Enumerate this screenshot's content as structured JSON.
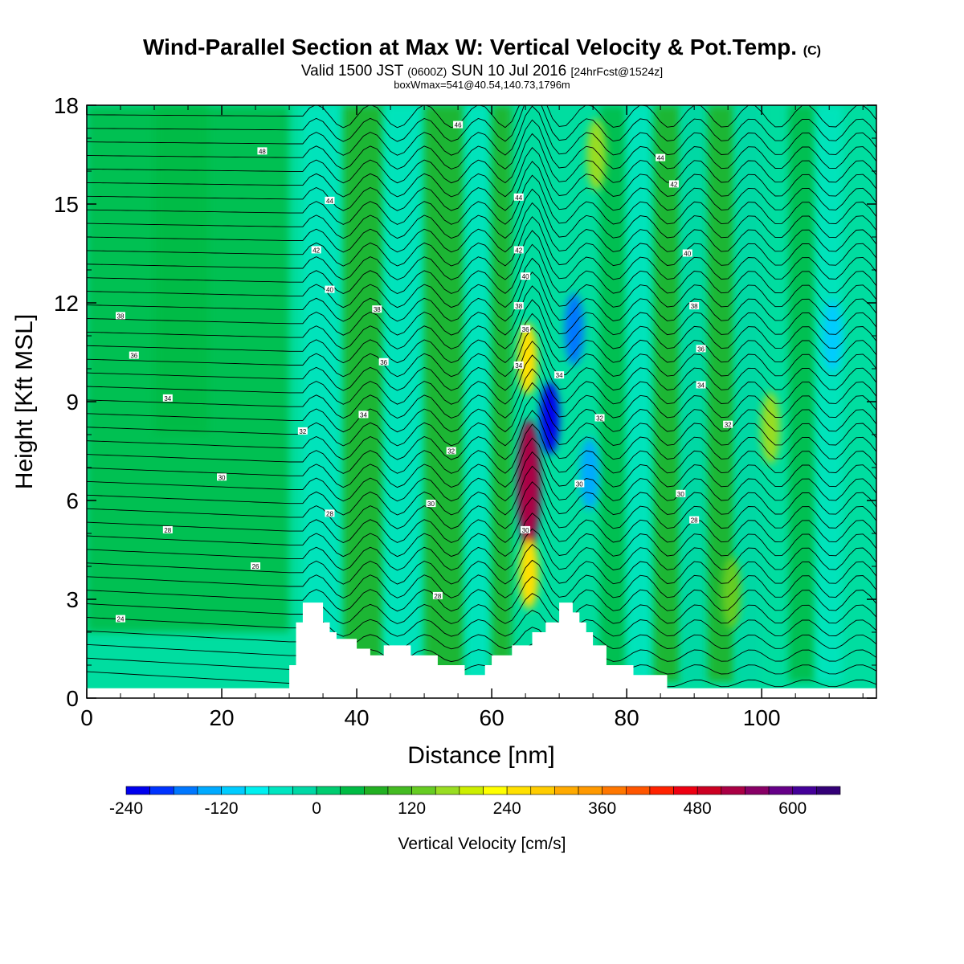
{
  "header": {
    "title": "Wind-Parallel Section at Max W: Vertical Velocity & Pot.Temp.",
    "copyright": "(C)",
    "valid_prefix": "Valid 1500 JST",
    "valid_utc": "(0600Z)",
    "valid_date": "SUN 10 Jul 2016",
    "forecast": "[24hrFcst@1524z]",
    "boxinfo": "boxWmax=541@40.54,140.73,1796m"
  },
  "chart_data": {
    "type": "heatmap",
    "xlabel": "Distance [nm]",
    "ylabel": "Height [Kft MSL]",
    "xlim": [
      0,
      117
    ],
    "ylim": [
      0,
      18
    ],
    "x_ticks": [
      "0",
      "20",
      "40",
      "60",
      "80",
      "100"
    ],
    "y_ticks": [
      "0",
      "3",
      "6",
      "9",
      "12",
      "15",
      "18"
    ],
    "colorbar": {
      "label": "Vertical Velocity [cm/s]",
      "tick_labels": [
        "-240",
        "-120",
        "0",
        "120",
        "240",
        "360",
        "480",
        "600"
      ],
      "levels": [
        -240,
        -210,
        -180,
        -150,
        -120,
        -90,
        -60,
        -30,
        0,
        30,
        60,
        90,
        120,
        150,
        180,
        210,
        240,
        270,
        300,
        330,
        360,
        390,
        420,
        450,
        480,
        510,
        540,
        570,
        600,
        630,
        660
      ],
      "colors": [
        "#0000ee",
        "#0033ff",
        "#0077ff",
        "#00aaff",
        "#00ccff",
        "#00f0f0",
        "#00e5c0",
        "#00d8a5",
        "#00cc70",
        "#00bb44",
        "#22b022",
        "#44bb22",
        "#66cc22",
        "#99dd22",
        "#ccee00",
        "#ffff00",
        "#ffe000",
        "#ffcc00",
        "#ffaa00",
        "#ff9900",
        "#ff7700",
        "#ff5500",
        "#ff2200",
        "#ee0011",
        "#cc0022",
        "#aa0044",
        "#880066",
        "#660088",
        "#440099",
        "#330077"
      ]
    },
    "wind_features": [
      {
        "x": 65.5,
        "y": 6.5,
        "w": 510,
        "note": "strong updraft core"
      },
      {
        "x": 65.5,
        "y": 3.8,
        "w": 260
      },
      {
        "x": 65.3,
        "y": 10.3,
        "w": 250
      },
      {
        "x": 68.6,
        "y": 8.5,
        "w": -240
      },
      {
        "x": 72.2,
        "y": 11.2,
        "w": -170
      },
      {
        "x": 74.5,
        "y": 6.8,
        "w": -130
      },
      {
        "x": 101.3,
        "y": 8.2,
        "w": 170
      },
      {
        "x": 75.5,
        "y": 16.5,
        "w": 170
      },
      {
        "x": 95.5,
        "y": 3.2,
        "w": 130
      },
      {
        "x": 110.5,
        "y": 11.0,
        "w": -120
      }
    ],
    "terrain": [
      {
        "x": 30,
        "y": 0.3
      },
      {
        "x": 30,
        "y": 1.0
      },
      {
        "x": 31,
        "y": 1.0
      },
      {
        "x": 31,
        "y": 2.3
      },
      {
        "x": 32,
        "y": 2.3
      },
      {
        "x": 32,
        "y": 2.9
      },
      {
        "x": 35,
        "y": 2.9
      },
      {
        "x": 35,
        "y": 2.3
      },
      {
        "x": 36,
        "y": 2.3
      },
      {
        "x": 36,
        "y": 2.0
      },
      {
        "x": 37,
        "y": 2.0
      },
      {
        "x": 37,
        "y": 1.8
      },
      {
        "x": 40,
        "y": 1.8
      },
      {
        "x": 40,
        "y": 1.5
      },
      {
        "x": 42,
        "y": 1.5
      },
      {
        "x": 42,
        "y": 1.3
      },
      {
        "x": 44,
        "y": 1.3
      },
      {
        "x": 44,
        "y": 1.6
      },
      {
        "x": 48,
        "y": 1.6
      },
      {
        "x": 48,
        "y": 1.3
      },
      {
        "x": 52,
        "y": 1.3
      },
      {
        "x": 52,
        "y": 1.0
      },
      {
        "x": 56,
        "y": 1.0
      },
      {
        "x": 56,
        "y": 0.7
      },
      {
        "x": 59,
        "y": 0.7
      },
      {
        "x": 59,
        "y": 1.0
      },
      {
        "x": 60,
        "y": 1.0
      },
      {
        "x": 60,
        "y": 1.3
      },
      {
        "x": 63,
        "y": 1.3
      },
      {
        "x": 63,
        "y": 1.6
      },
      {
        "x": 66,
        "y": 1.6
      },
      {
        "x": 66,
        "y": 2.0
      },
      {
        "x": 68,
        "y": 2.0
      },
      {
        "x": 68,
        "y": 2.3
      },
      {
        "x": 70,
        "y": 2.3
      },
      {
        "x": 70,
        "y": 2.9
      },
      {
        "x": 72,
        "y": 2.9
      },
      {
        "x": 72,
        "y": 2.6
      },
      {
        "x": 73,
        "y": 2.6
      },
      {
        "x": 73,
        "y": 2.3
      },
      {
        "x": 74,
        "y": 2.3
      },
      {
        "x": 74,
        "y": 2.0
      },
      {
        "x": 75,
        "y": 2.0
      },
      {
        "x": 75,
        "y": 1.6
      },
      {
        "x": 77,
        "y": 1.6
      },
      {
        "x": 77,
        "y": 1.0
      },
      {
        "x": 81,
        "y": 1.0
      },
      {
        "x": 81,
        "y": 0.7
      },
      {
        "x": 86,
        "y": 0.7
      },
      {
        "x": 86,
        "y": 0.3
      },
      {
        "x": 117,
        "y": 0.3
      }
    ],
    "theta_labels": [
      {
        "x": 26,
        "y": 16.6,
        "t": "48"
      },
      {
        "x": 5,
        "y": 11.6,
        "t": "38"
      },
      {
        "x": 7,
        "y": 10.4,
        "t": "36"
      },
      {
        "x": 12,
        "y": 9.1,
        "t": "34"
      },
      {
        "x": 20,
        "y": 6.7,
        "t": "30"
      },
      {
        "x": 12,
        "y": 5.1,
        "t": "28"
      },
      {
        "x": 25,
        "y": 4.0,
        "t": "26"
      },
      {
        "x": 5,
        "y": 2.4,
        "t": "24"
      },
      {
        "x": 36,
        "y": 15.1,
        "t": "44"
      },
      {
        "x": 34,
        "y": 13.6,
        "t": "42"
      },
      {
        "x": 36,
        "y": 12.4,
        "t": "40"
      },
      {
        "x": 43,
        "y": 11.8,
        "t": "38"
      },
      {
        "x": 44,
        "y": 10.2,
        "t": "36"
      },
      {
        "x": 41,
        "y": 8.6,
        "t": "34"
      },
      {
        "x": 32,
        "y": 8.1,
        "t": "32"
      },
      {
        "x": 36,
        "y": 5.6,
        "t": "28"
      },
      {
        "x": 55,
        "y": 17.4,
        "t": "46"
      },
      {
        "x": 64,
        "y": 15.2,
        "t": "44"
      },
      {
        "x": 64,
        "y": 13.6,
        "t": "42"
      },
      {
        "x": 65,
        "y": 12.8,
        "t": "40"
      },
      {
        "x": 64,
        "y": 11.9,
        "t": "38"
      },
      {
        "x": 65,
        "y": 11.2,
        "t": "36"
      },
      {
        "x": 64,
        "y": 10.1,
        "t": "34"
      },
      {
        "x": 70,
        "y": 9.8,
        "t": "34"
      },
      {
        "x": 54,
        "y": 7.5,
        "t": "32"
      },
      {
        "x": 51,
        "y": 5.9,
        "t": "30"
      },
      {
        "x": 65,
        "y": 5.1,
        "t": "30"
      },
      {
        "x": 52,
        "y": 3.1,
        "t": "28"
      },
      {
        "x": 73,
        "y": 6.5,
        "t": "30"
      },
      {
        "x": 76,
        "y": 8.5,
        "t": "32"
      },
      {
        "x": 85,
        "y": 16.4,
        "t": "44"
      },
      {
        "x": 87,
        "y": 15.6,
        "t": "42"
      },
      {
        "x": 89,
        "y": 13.5,
        "t": "40"
      },
      {
        "x": 90,
        "y": 11.9,
        "t": "38"
      },
      {
        "x": 91,
        "y": 10.6,
        "t": "36"
      },
      {
        "x": 91,
        "y": 9.5,
        "t": "34"
      },
      {
        "x": 95,
        "y": 8.3,
        "t": "32"
      },
      {
        "x": 88,
        "y": 6.2,
        "t": "30"
      },
      {
        "x": 90,
        "y": 5.4,
        "t": "28"
      }
    ]
  }
}
